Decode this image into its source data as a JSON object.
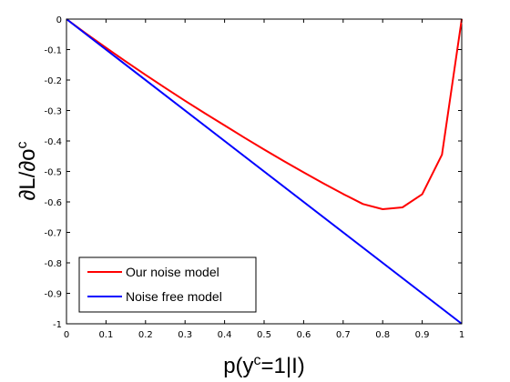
{
  "chart_data": {
    "type": "line",
    "xlabel": {
      "base": "p(y",
      "sup": "c",
      "rest": "=1|I)"
    },
    "ylabel": {
      "base": "∂L/∂o",
      "sup": "c"
    },
    "xlim": [
      0,
      1
    ],
    "ylim": [
      -1,
      0
    ],
    "xticks": [
      0,
      0.1,
      0.2,
      0.3,
      0.4,
      0.5,
      0.6,
      0.7,
      0.8,
      0.9,
      1
    ],
    "xtick_labels": [
      "0",
      "0.1",
      "0.2",
      "0.3",
      "0.4",
      "0.5",
      "0.6",
      "0.7",
      "0.8",
      "0.9",
      "1"
    ],
    "yticks": [
      0,
      -0.1,
      -0.2,
      -0.3,
      -0.4,
      -0.5,
      -0.6,
      -0.7,
      -0.8,
      -0.9,
      -1
    ],
    "ytick_labels": [
      "0",
      "-0.1",
      "-0.2",
      "-0.3",
      "-0.4",
      "-0.5",
      "-0.6",
      "-0.7",
      "-0.8",
      "-0.9",
      "-1"
    ],
    "grid": false,
    "legend_position": "bottom-left",
    "series": [
      {
        "name": "Our noise model",
        "color": "#ff0000",
        "x": [
          0,
          0.05,
          0.1,
          0.15,
          0.2,
          0.25,
          0.3,
          0.35,
          0.4,
          0.45,
          0.5,
          0.55,
          0.6,
          0.65,
          0.7,
          0.75,
          0.8,
          0.85,
          0.9,
          0.95,
          1.0
        ],
        "y": [
          0,
          -0.048,
          -0.094,
          -0.139,
          -0.183,
          -0.226,
          -0.268,
          -0.309,
          -0.349,
          -0.389,
          -0.428,
          -0.466,
          -0.503,
          -0.539,
          -0.574,
          -0.607,
          -0.624,
          -0.618,
          -0.575,
          -0.445,
          0
        ]
      },
      {
        "name": "Noise free model",
        "color": "#0000ff",
        "x": [
          0,
          1
        ],
        "y": [
          0,
          -1
        ]
      }
    ]
  }
}
